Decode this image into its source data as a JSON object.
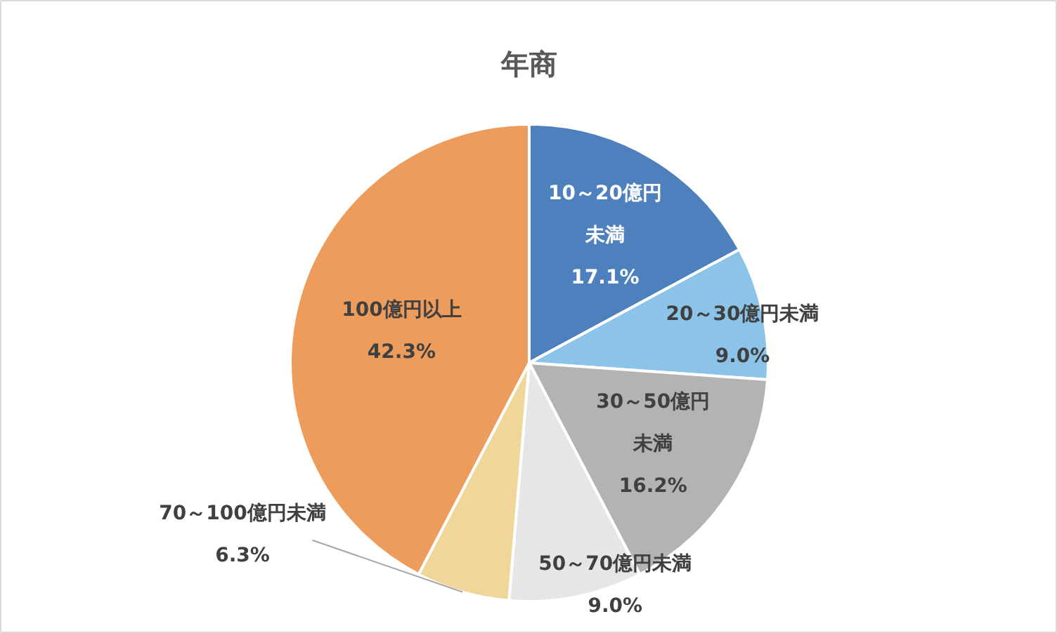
{
  "chart_data": {
    "type": "pie",
    "title": "年商",
    "categories": [
      "10～20億円未満",
      "20～30億円未満",
      "30～50億円未満",
      "50～70億円未満",
      "70～100億円未満",
      "100億円以上"
    ],
    "values": [
      17.1,
      9.0,
      16.2,
      9.0,
      6.3,
      42.3
    ],
    "value_labels": [
      "17.1%",
      "9.0%",
      "16.2%",
      "9.0%",
      "6.3%",
      "42.3%"
    ],
    "colors": [
      "#4e80bd",
      "#8cc3e8",
      "#b3b3b3",
      "#e6e6e6",
      "#f0d699",
      "#ed9c5c"
    ]
  }
}
